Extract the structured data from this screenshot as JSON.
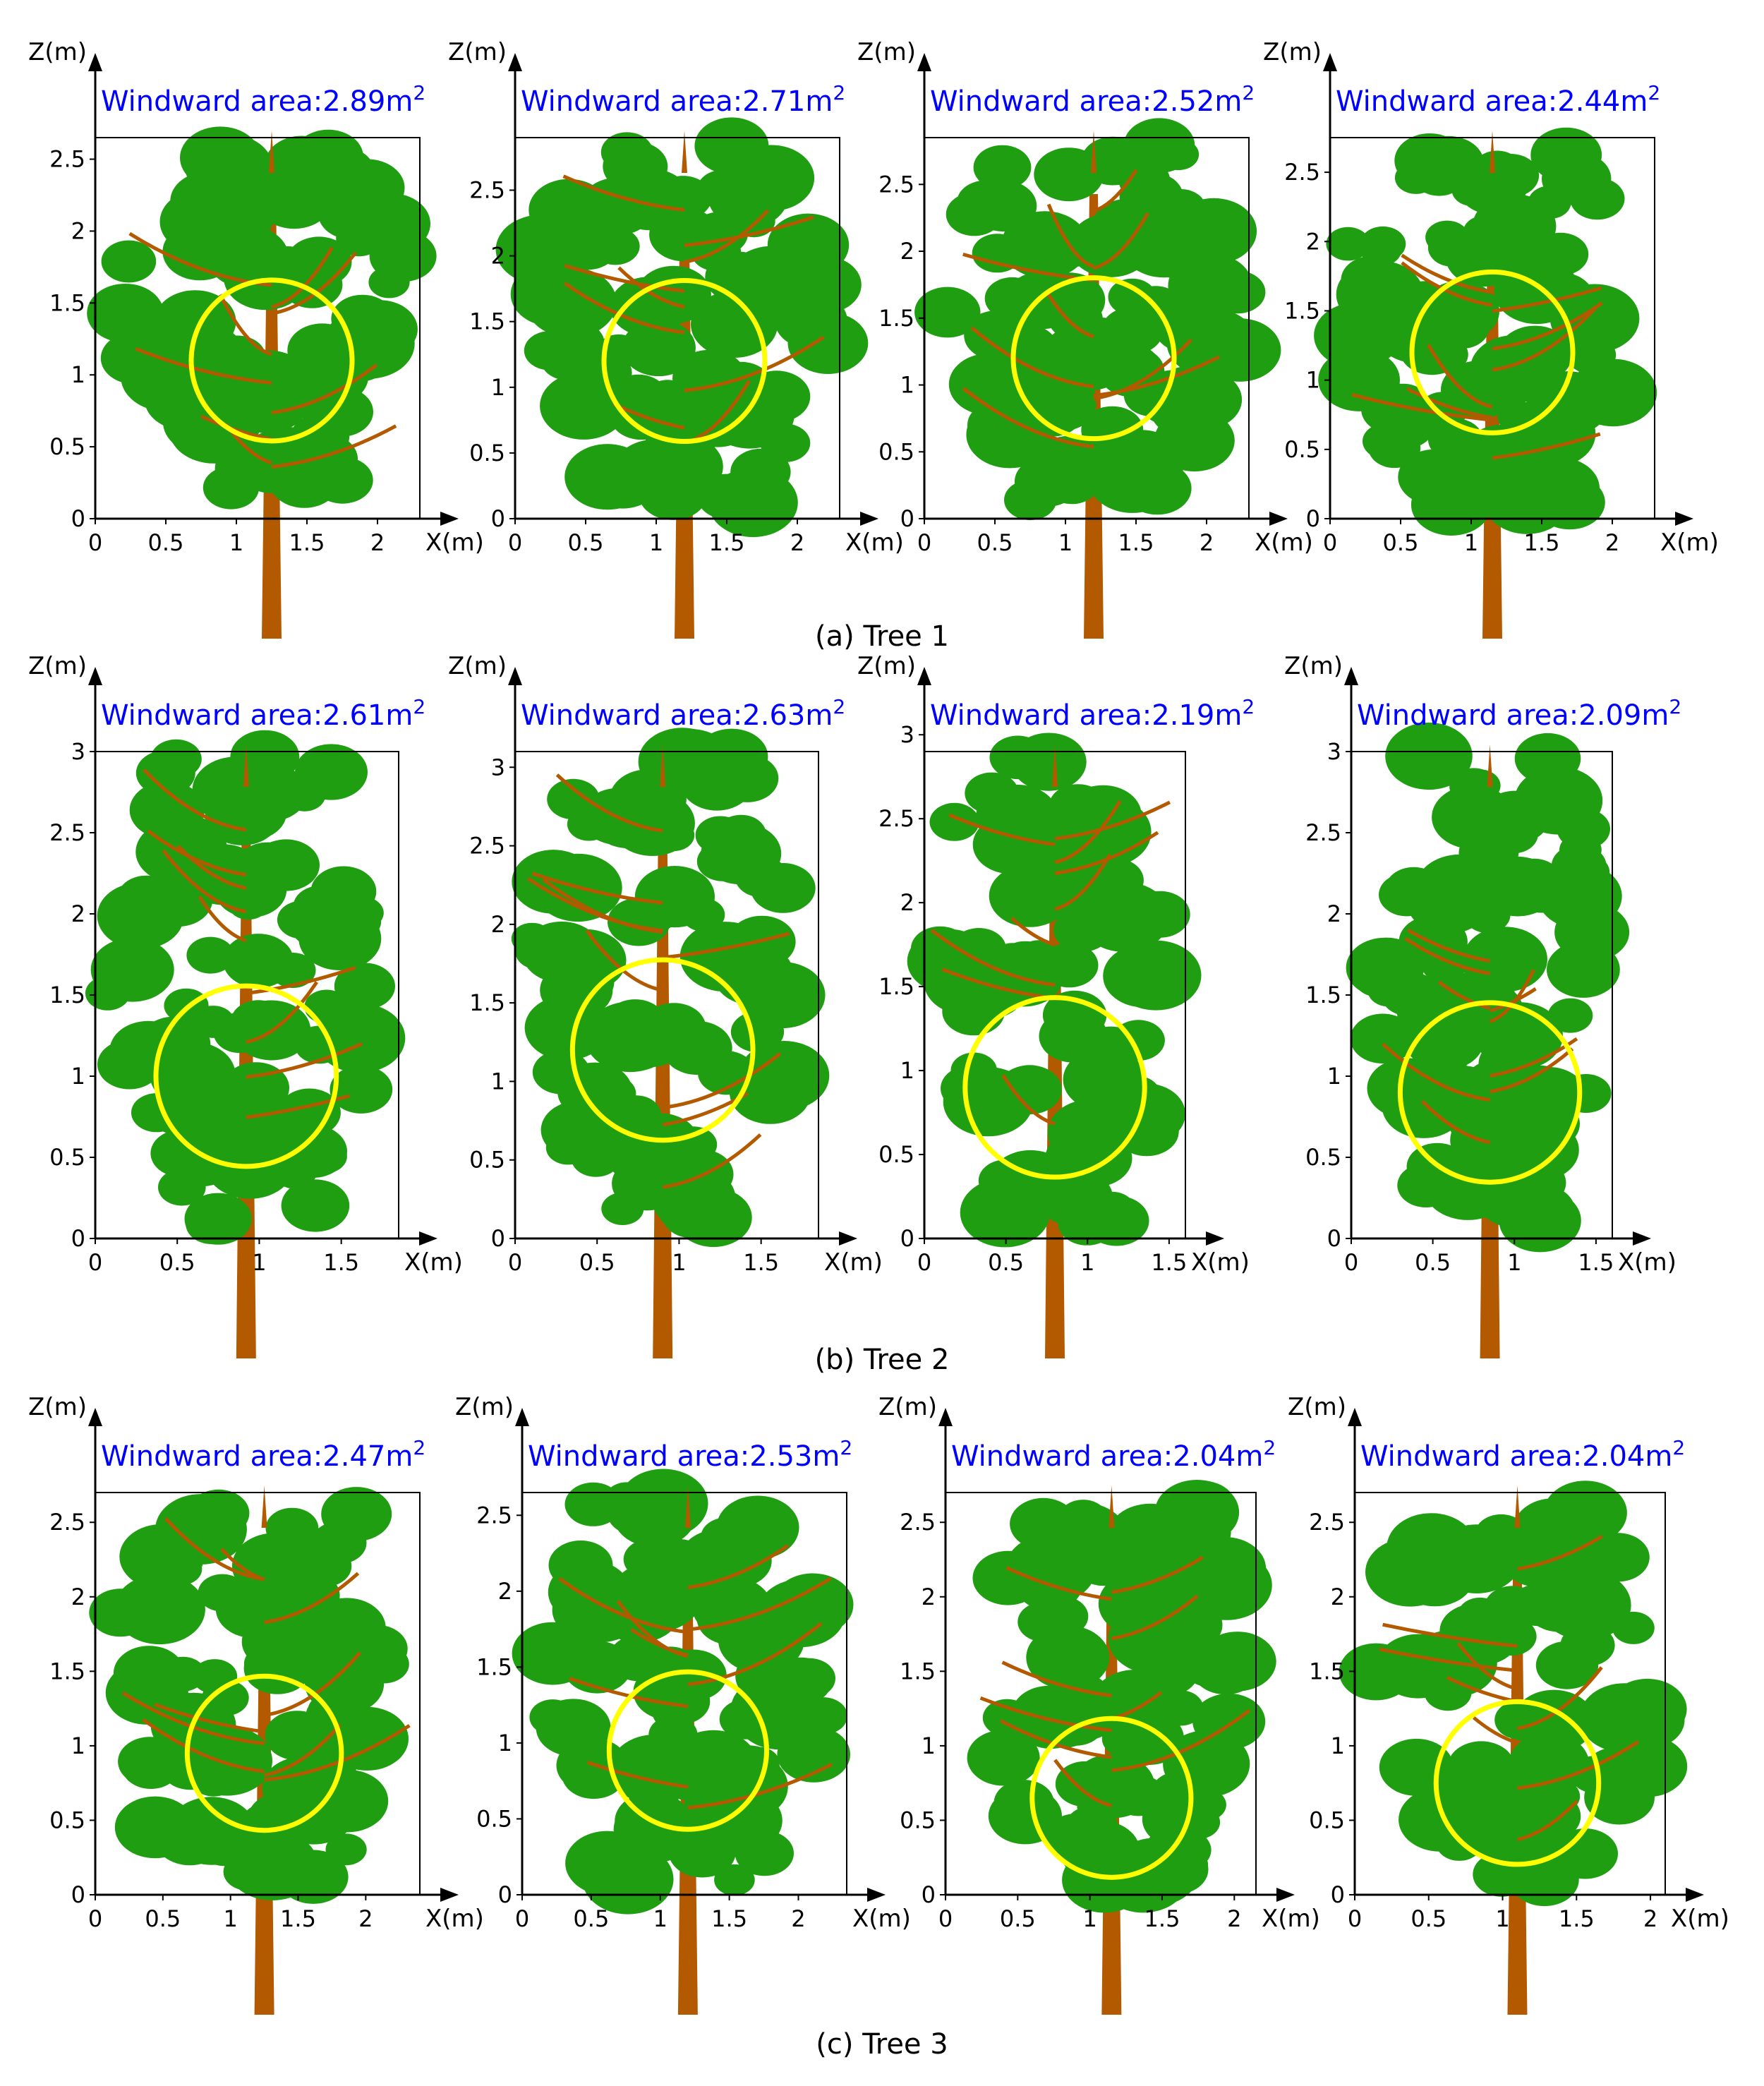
{
  "rows": [
    {
      "caption": "(a) Tree 1",
      "panels": [
        {
          "label": "Windward area:2.89m",
          "sup": "2",
          "xticks": [
            "0",
            "0.5",
            "1",
            "1.5",
            "2"
          ],
          "zticks": [
            "0",
            "0.5",
            "1",
            "1.5",
            "2",
            "2.5"
          ],
          "xmax": 2.3,
          "zmax": 2.65,
          "circle": {
            "cx": 1.25,
            "cz": 1.1,
            "r": 0.57
          }
        },
        {
          "label": "Windward area:2.71m",
          "sup": "2",
          "xticks": [
            "0",
            "0.5",
            "1",
            "1.5",
            "2"
          ],
          "zticks": [
            "0",
            "0.5",
            "1",
            "1.5",
            "2",
            "2.5"
          ],
          "xmax": 2.3,
          "zmax": 2.9,
          "circle": {
            "cx": 1.2,
            "cz": 1.2,
            "r": 0.57
          }
        },
        {
          "label": "Windward area:2.52m",
          "sup": "2",
          "xticks": [
            "0",
            "0.5",
            "1",
            "1.5",
            "2"
          ],
          "zticks": [
            "0",
            "0.5",
            "1",
            "1.5",
            "2",
            "2.5"
          ],
          "xmax": 2.3,
          "zmax": 2.85,
          "circle": {
            "cx": 1.2,
            "cz": 1.2,
            "r": 0.57
          }
        },
        {
          "label": "Windward area:2.44m",
          "sup": "2",
          "xticks": [
            "0",
            "0.5",
            "1",
            "1.5",
            "2"
          ],
          "zticks": [
            "0",
            "0.5",
            "1",
            "1.5",
            "2",
            "2.5"
          ],
          "xmax": 2.3,
          "zmax": 2.75,
          "circle": {
            "cx": 1.15,
            "cz": 1.2,
            "r": 0.57
          }
        }
      ]
    },
    {
      "caption": "(b) Tree 2",
      "panels": [
        {
          "label": "Windward area:2.61m",
          "sup": "2",
          "xticks": [
            "0",
            "0.5",
            "1",
            "1.5"
          ],
          "zticks": [
            "0",
            "0.5",
            "1",
            "1.5",
            "2",
            "2.5",
            "3"
          ],
          "xmax": 1.85,
          "zmax": 3.0,
          "circle": {
            "cx": 0.92,
            "cz": 1.0,
            "r": 0.55
          }
        },
        {
          "label": "Windward area:2.63m",
          "sup": "2",
          "xticks": [
            "0",
            "0.5",
            "1",
            "1.5"
          ],
          "zticks": [
            "0",
            "0.5",
            "1",
            "1.5",
            "2",
            "2.5",
            "3"
          ],
          "xmax": 1.85,
          "zmax": 3.1,
          "circle": {
            "cx": 0.9,
            "cz": 1.2,
            "r": 0.55
          }
        },
        {
          "label": "Windward area:2.19m",
          "sup": "2",
          "xticks": [
            "0",
            "0.5",
            "1",
            "1.5"
          ],
          "zticks": [
            "0",
            "0.5",
            "1",
            "1.5",
            "2",
            "2.5",
            "3"
          ],
          "xmax": 1.6,
          "zmax": 2.9,
          "circle": {
            "cx": 0.8,
            "cz": 0.9,
            "r": 0.55
          }
        },
        {
          "label": "Windward area:2.09m",
          "sup": "2",
          "xticks": [
            "0",
            "0.5",
            "1",
            "1.5"
          ],
          "zticks": [
            "0",
            "0.5",
            "1",
            "1.5",
            "2",
            "2.5",
            "3"
          ],
          "xmax": 1.6,
          "zmax": 3.0,
          "circle": {
            "cx": 0.85,
            "cz": 0.9,
            "r": 0.55
          }
        }
      ]
    },
    {
      "caption": "(c) Tree 3",
      "panels": [
        {
          "label": "Windward area:2.47m",
          "sup": "2",
          "xticks": [
            "0",
            "0.5",
            "1",
            "1.5",
            "2"
          ],
          "zticks": [
            "0",
            "0.5",
            "1",
            "1.5",
            "2",
            "2.5"
          ],
          "xmax": 2.4,
          "zmax": 2.7,
          "circle": {
            "cx": 1.25,
            "cz": 0.95,
            "r": 0.57
          }
        },
        {
          "label": "Windward area:2.53m",
          "sup": "2",
          "xticks": [
            "0",
            "0.5",
            "1",
            "1.5",
            "2"
          ],
          "zticks": [
            "0",
            "0.5",
            "1",
            "1.5",
            "2",
            "2.5"
          ],
          "xmax": 2.35,
          "zmax": 2.65,
          "circle": {
            "cx": 1.2,
            "cz": 0.95,
            "r": 0.57
          }
        },
        {
          "label": "Windward area:2.04m",
          "sup": "2",
          "xticks": [
            "0",
            "0.5",
            "1",
            "1.5",
            "2"
          ],
          "zticks": [
            "0",
            "0.5",
            "1",
            "1.5",
            "2",
            "2.5"
          ],
          "xmax": 2.15,
          "zmax": 2.7,
          "circle": {
            "cx": 1.15,
            "cz": 0.65,
            "r": 0.55
          }
        },
        {
          "label": "Windward area:2.04m",
          "sup": "2",
          "xticks": [
            "0",
            "0.5",
            "1",
            "1.5",
            "2"
          ],
          "zticks": [
            "0",
            "0.5",
            "1",
            "1.5",
            "2",
            "2.5"
          ],
          "xmax": 2.1,
          "zmax": 2.7,
          "circle": {
            "cx": 1.1,
            "cz": 0.75,
            "r": 0.55
          }
        }
      ]
    }
  ],
  "axis": {
    "x_label": "X(m)",
    "z_label": "Z(m)"
  },
  "colors": {
    "foliage": "#1f9e12",
    "wood": "#b35a00",
    "circle": "#ffff00",
    "label": "#0000ff",
    "axis": "#000000"
  }
}
